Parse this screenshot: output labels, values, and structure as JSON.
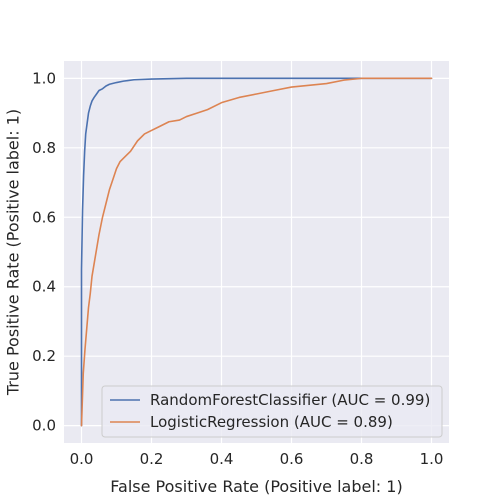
{
  "chart_data": {
    "type": "line",
    "title": "",
    "xlabel": "False Positive Rate (Positive label: 1)",
    "ylabel": "True Positive Rate (Positive label: 1)",
    "xlim": [
      -0.05,
      1.05
    ],
    "ylim": [
      -0.05,
      1.05
    ],
    "xticks": [
      "0.0",
      "0.2",
      "0.4",
      "0.6",
      "0.8",
      "1.0"
    ],
    "yticks": [
      "0.0",
      "0.2",
      "0.4",
      "0.6",
      "0.8",
      "1.0"
    ],
    "xtick_values": [
      0,
      0.2,
      0.4,
      0.6,
      0.8,
      1.0
    ],
    "ytick_values": [
      0,
      0.2,
      0.4,
      0.6,
      0.8,
      1.0
    ],
    "grid": true,
    "legend_position": "bottom-right",
    "series": [
      {
        "name": "RandomForestClassifier (AUC = 0.99)",
        "color": "#4c72b0",
        "x": [
          0,
          0,
          0.003,
          0.006,
          0.009,
          0.012,
          0.016,
          0.02,
          0.025,
          0.03,
          0.036,
          0.043,
          0.05,
          0.06,
          0.07,
          0.08,
          0.1,
          0.12,
          0.15,
          0.2,
          0.3,
          0.5,
          0.7,
          0.8,
          1.0
        ],
        "y": [
          0,
          0.45,
          0.62,
          0.72,
          0.79,
          0.84,
          0.87,
          0.9,
          0.92,
          0.935,
          0.945,
          0.955,
          0.965,
          0.97,
          0.978,
          0.983,
          0.988,
          0.992,
          0.996,
          0.998,
          1.0,
          1.0,
          1.0,
          1.0,
          1.0
        ]
      },
      {
        "name": "LogisticRegression (AUC = 0.89)",
        "color": "#dd8452",
        "x": [
          0,
          0.005,
          0.01,
          0.015,
          0.02,
          0.025,
          0.03,
          0.04,
          0.05,
          0.06,
          0.07,
          0.08,
          0.09,
          0.1,
          0.11,
          0.12,
          0.14,
          0.16,
          0.18,
          0.2,
          0.22,
          0.25,
          0.28,
          0.3,
          0.33,
          0.36,
          0.4,
          0.45,
          0.5,
          0.55,
          0.6,
          0.65,
          0.7,
          0.75,
          0.8,
          0.9,
          1.0
        ],
        "y": [
          0,
          0.15,
          0.22,
          0.28,
          0.34,
          0.38,
          0.43,
          0.49,
          0.55,
          0.6,
          0.64,
          0.68,
          0.71,
          0.74,
          0.76,
          0.77,
          0.79,
          0.82,
          0.84,
          0.85,
          0.86,
          0.875,
          0.88,
          0.89,
          0.9,
          0.91,
          0.93,
          0.945,
          0.955,
          0.965,
          0.975,
          0.98,
          0.985,
          0.995,
          1.0,
          1.0,
          1.0
        ]
      }
    ]
  }
}
